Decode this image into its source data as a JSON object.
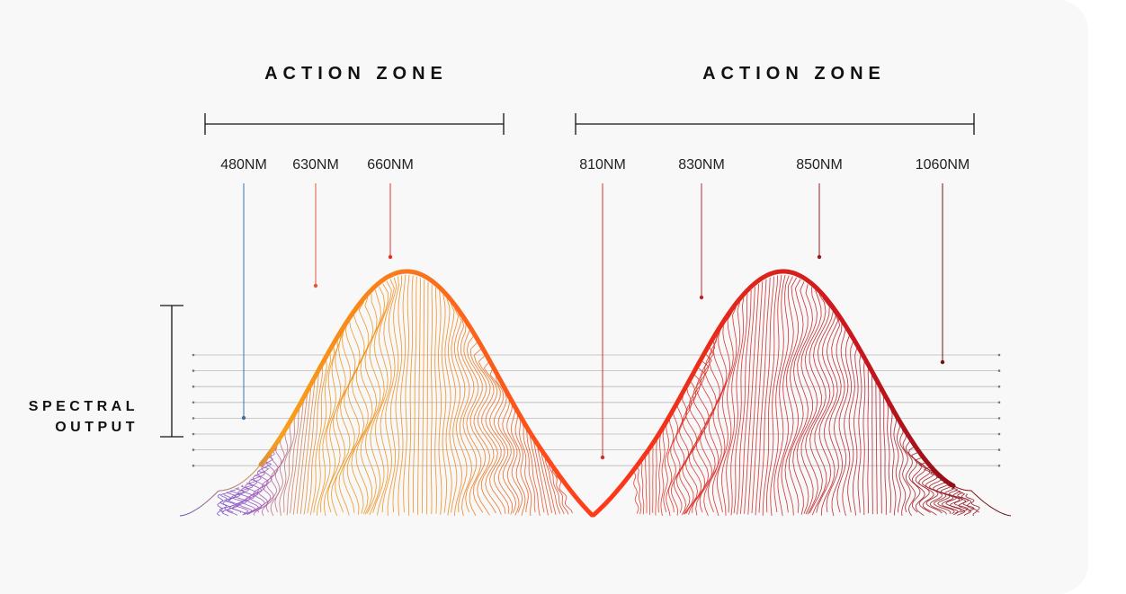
{
  "zones": [
    {
      "title": "ACTION ZONE"
    },
    {
      "title": "ACTION ZONE"
    }
  ],
  "side_label": {
    "line1": "SPECTRAL",
    "line2": "OUTPUT"
  },
  "wavelengths": [
    {
      "label": "480NM",
      "color": "#3f6fa8"
    },
    {
      "label": "630NM",
      "color": "#e05a3a"
    },
    {
      "label": "660NM",
      "color": "#e0322a"
    },
    {
      "label": "810NM",
      "color": "#d4302a"
    },
    {
      "label": "830NM",
      "color": "#b82828"
    },
    {
      "label": "850NM",
      "color": "#8f1f1f"
    },
    {
      "label": "1060NM",
      "color": "#6e1414"
    }
  ],
  "colors": {
    "background": "#f8f8f8",
    "curve_start": "#f7a01a",
    "curve_mid": "#ff3b1a",
    "curve_end": "#7a0a14",
    "blue_accent": "#5a4bb8",
    "gridline": "#b9b9b9"
  }
}
